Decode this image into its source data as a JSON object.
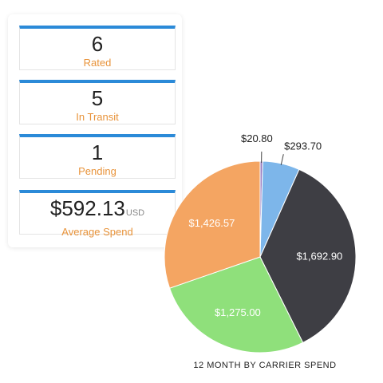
{
  "stats": {
    "rated": {
      "value": "6",
      "label": "Rated"
    },
    "in_transit": {
      "value": "5",
      "label": "In Transit"
    },
    "pending": {
      "value": "1",
      "label": "Pending"
    },
    "average_spend": {
      "value": "$592.13",
      "unit": "USD",
      "label": "Average Spend"
    }
  },
  "colors": {
    "card_accent": "#2b8ad8",
    "label_orange": "#e8933a",
    "slice_purple": "#9a7fc2",
    "slice_blue": "#7db6ea",
    "slice_dark": "#3e3e44",
    "slice_green": "#8fe07b",
    "slice_orange": "#f4a562"
  },
  "chart_data": {
    "type": "pie",
    "title": "12 MONTH BY CARRIER SPEND",
    "slices": [
      {
        "label": "$20.80",
        "value": 20.8,
        "color": "#9a7fc2",
        "label_position": "outside"
      },
      {
        "label": "$293.70",
        "value": 293.7,
        "color": "#7db6ea",
        "label_position": "outside"
      },
      {
        "label": "$1,692.90",
        "value": 1692.9,
        "color": "#3e3e44",
        "label_position": "inside"
      },
      {
        "label": "$1,275.00",
        "value": 1275.0,
        "color": "#8fe07b",
        "label_position": "inside"
      },
      {
        "label": "$1,426.57",
        "value": 1426.57,
        "color": "#f4a562",
        "label_position": "inside"
      }
    ]
  }
}
